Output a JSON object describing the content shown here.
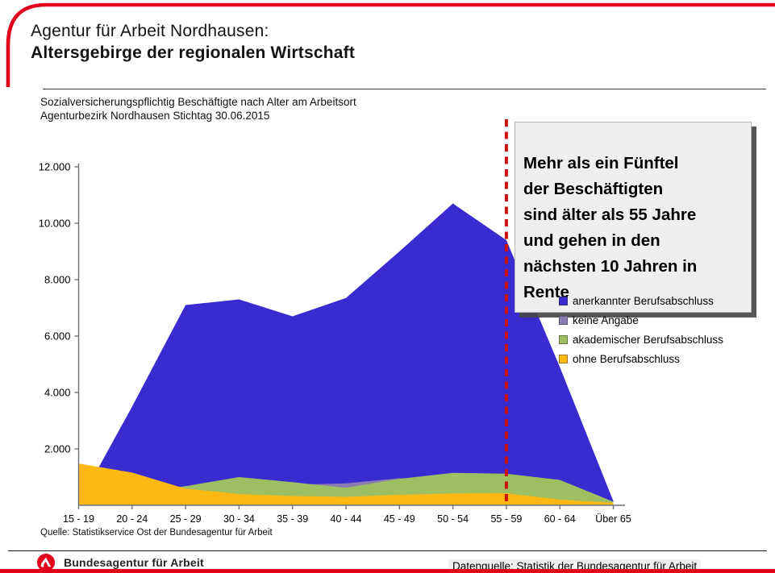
{
  "header": {
    "title_line1": "Agentur für Arbeit Nordhausen:",
    "title_line2": "Altersgebirge der regionalen Wirtschaft",
    "subtitle_line1": "Sozialversicherungspflichtig Beschäftigte nach Alter am Arbeitsort",
    "subtitle_line2": "Agenturbezirk Nordhausen Stichtag 30.06.2015"
  },
  "annotation": {
    "text": "Mehr als ein Fünftel\nder Beschäftigten\nsind älter als 55 Jahre\nund gehen in den\nnächsten 10 Jahren in\nRente"
  },
  "colors": {
    "accent_red": "#e2001a",
    "dashed_line_red": "#cc1111",
    "axis_gray": "#6f6f7a"
  },
  "chart_data": {
    "type": "area",
    "overlap": "overlapping series, not stacked; draw order = series order (first in back)",
    "categories": [
      "15 - 19",
      "20 - 24",
      "25 - 29",
      "30 - 34",
      "35 - 39",
      "40 - 44",
      "45 - 49",
      "50 - 54",
      "55 - 59",
      "60 - 64",
      "Über 65"
    ],
    "series": [
      {
        "name": "anerkannter Berufsabschluss",
        "color": "#3a2bd1",
        "values": [
          50,
          3500,
          7100,
          7300,
          6700,
          7350,
          9000,
          10700,
          9400,
          4900,
          150
        ]
      },
      {
        "name": "keine Angabe",
        "color": "#8b7cb3",
        "values": [
          50,
          250,
          450,
          620,
          730,
          780,
          960,
          800,
          650,
          350,
          60
        ]
      },
      {
        "name": "akademischer Berufsabschluss",
        "color": "#9dbf62",
        "values": [
          60,
          450,
          680,
          1000,
          820,
          620,
          940,
          1150,
          1120,
          900,
          130
        ]
      },
      {
        "name": "ohne Berufsabschluss",
        "color": "#fdb813",
        "values": [
          1480,
          1160,
          590,
          400,
          330,
          300,
          370,
          420,
          430,
          200,
          90
        ]
      }
    ],
    "y_ticks": [
      "2.000",
      "4.000",
      "6.000",
      "8.000",
      "10.000",
      "12.000"
    ],
    "y_tick_values": [
      2000,
      4000,
      6000,
      8000,
      10000,
      12000
    ],
    "ylim": [
      0,
      12000
    ],
    "marker_line": {
      "category": "55 - 59",
      "style": "red dashed vertical line"
    },
    "legend_position": "right, below annotation box",
    "grid": "off"
  },
  "footer": {
    "quelle": "Quelle: Statistikservice Ost der Bundesagentur für Arbeit",
    "brand": "Bundesagentur für Arbeit",
    "datenquelle": "Datenquelle: Statistik der Bundesagentur für Arbeit"
  }
}
